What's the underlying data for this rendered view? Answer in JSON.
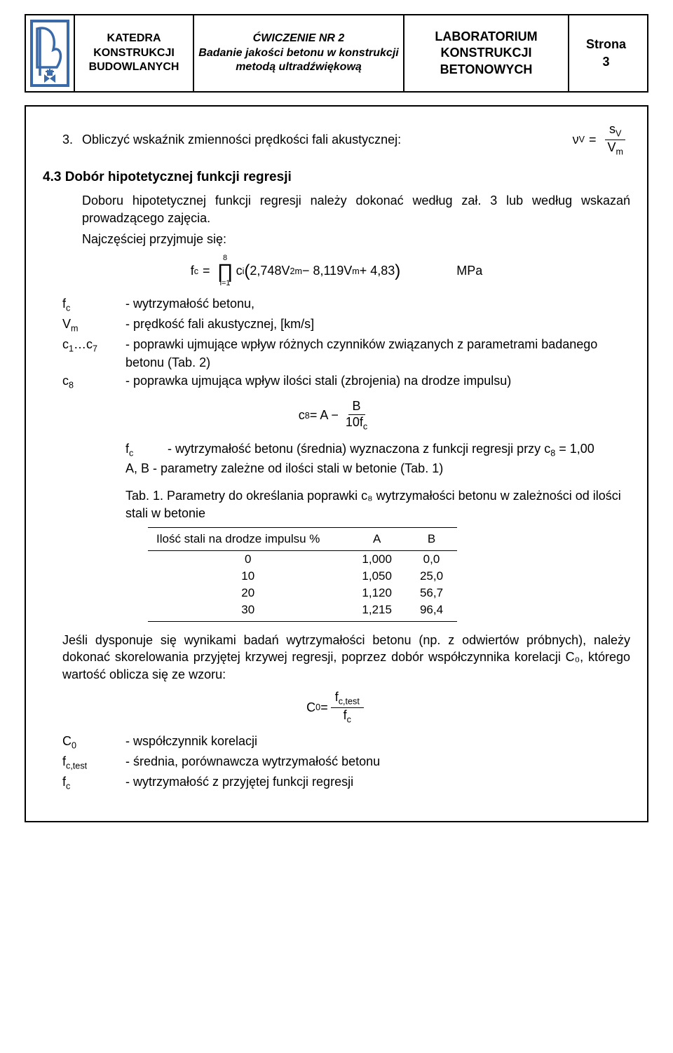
{
  "header": {
    "dept": "KATEDRA KONSTRUKCJI BUDOWLANYCH",
    "exercise_no": "ĆWICZENIE NR 2",
    "exercise_title": "Badanie jakości betonu w konstrukcji metodą ultradźwiękową",
    "lab": "LABORATORIUM KONSTRUKCJI BETONOWYCH",
    "page_label": "Strona",
    "page_number": "3"
  },
  "section3": {
    "num": "3.",
    "text": "Obliczyć wskaźnik zmienności prędkości fali akustycznej:",
    "formula_lhs": "ν",
    "formula_sub_v": "V",
    "formula_eq": "=",
    "frac_top": "s",
    "frac_top_sub": "V",
    "frac_bot": "V",
    "frac_bot_sub": "m"
  },
  "section43": {
    "heading": "4.3   Dobór hipotetycznej funkcji regresji",
    "para1": "Doboru hipotetycznej funkcji regresji należy dokonać według zał. 3 lub według wskazań prowadzącego zajęcia.",
    "para2": "Najczęściej przyjmuje się:",
    "main_formula": {
      "lhs": "f",
      "lhs_sub": "c",
      "eq": "=",
      "prod_top": "8",
      "prod_sym": "∏",
      "prod_bot": "i=1",
      "ci": "c",
      "ci_sub": "i",
      "open": "(",
      "a": "2,748V",
      "a_sub": "m",
      "a_sup": "2",
      "minus": " − 8,119V",
      "b_sub": "m",
      "plus": " + 4,83",
      "close": ")",
      "unit": "MPa"
    },
    "defs": [
      {
        "term": "f_c",
        "term_html": "f<span class=\"sub\">c</span>",
        "desc": "- wytrzymałość betonu,"
      },
      {
        "term": "V_m",
        "term_html": "V<span class=\"sub\">m</span>",
        "desc": "- prędkość fali akustycznej, [km/s]"
      },
      {
        "term": "c1...c7",
        "term_html": "c<span class=\"sub\">1</span>…c<span class=\"sub\">7</span>",
        "desc": "- poprawki ujmujące wpływ różnych czynników związanych z parametrami badanego betonu (Tab. 2)"
      },
      {
        "term": "c8",
        "term_html": "c<span class=\"sub\">8</span>",
        "desc": "- poprawka ujmująca wpływ ilości stali (zbrojenia) na drodze impulsu)"
      }
    ],
    "c8_formula": {
      "lhs": "c",
      "lhs_sub": "8",
      "eq": " = A − ",
      "frac_top": "B",
      "frac_bot": "10f",
      "frac_bot_sub": "c"
    },
    "fc_def": {
      "term_html": "f<span class=\"sub\">c</span>",
      "desc": "- wytrzymałość betonu (średnia) wyznaczona z funkcji regresji przy c",
      "desc_sub": "8",
      "desc_tail": " = 1,00"
    },
    "ab_def": "A, B  - parametry zależne od ilości stali w betonie (Tab. 1)",
    "tab1_caption": "Tab. 1. Parametry do określania poprawki c₈ wytrzymałości betonu w zależności od ilości stali w betonie",
    "table1": {
      "headers": [
        "Ilość stali  na  drodze  impulsu %",
        "A",
        "B"
      ],
      "rows": [
        [
          "0",
          "1,000",
          "0,0"
        ],
        [
          "10",
          "1,050",
          "25,0"
        ],
        [
          "20",
          "1,120",
          "56,7"
        ],
        [
          "30",
          "1,215",
          "96,4"
        ]
      ]
    },
    "para3": "Jeśli dysponuje się wynikami badań wytrzymałości betonu (np. z odwiertów próbnych), należy dokonać skorelowania przyjętej krzywej regresji, poprzez dobór współczynnika korelacji C₀, którego wartość oblicza się ze wzoru:",
    "c0_formula": {
      "lhs": "C",
      "lhs_sub": "0",
      "eq": " = ",
      "frac_top": "f",
      "frac_top_sub": "c,test",
      "frac_bot": "f",
      "frac_bot_sub": "c"
    },
    "defs2": [
      {
        "term_html": "C<span class=\"sub\">0</span>",
        "desc": "- współczynnik korelacji"
      },
      {
        "term_html": "f<span class=\"sub\">c,test</span>",
        "desc": "- średnia, porównawcza wytrzymałość betonu"
      },
      {
        "term_html": "f<span class=\"sub\">c</span>",
        "desc": "- wytrzymałość z przyjętej funkcji regresji"
      }
    ]
  }
}
